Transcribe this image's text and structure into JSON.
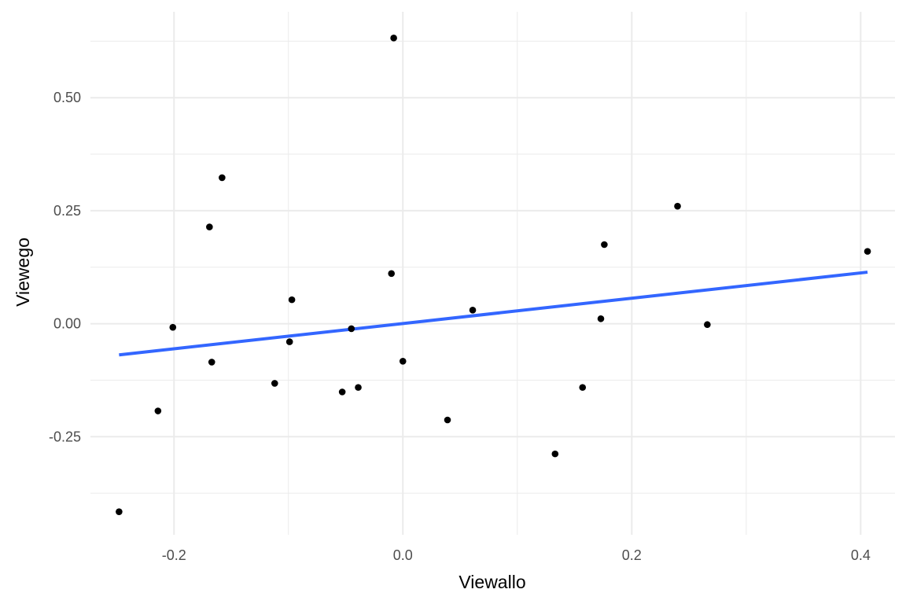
{
  "chart_data": {
    "type": "scatter",
    "title": "",
    "xlabel": "Viewallo",
    "ylabel": "Viewego",
    "xlim": [
      -0.273,
      0.43
    ],
    "ylim": [
      -0.467,
      0.69
    ],
    "x_ticks": [
      {
        "value": -0.2,
        "label": "-0.2"
      },
      {
        "value": 0.0,
        "label": "0.0"
      },
      {
        "value": 0.2,
        "label": "0.2"
      },
      {
        "value": 0.4,
        "label": "0.4"
      }
    ],
    "x_minor_ticks": [
      -0.1,
      0.1,
      0.3
    ],
    "y_ticks": [
      {
        "value": -0.25,
        "label": "-0.25"
      },
      {
        "value": 0.0,
        "label": "0.00"
      },
      {
        "value": 0.25,
        "label": "0.25"
      },
      {
        "value": 0.5,
        "label": "0.50"
      }
    ],
    "y_minor_ticks": [
      -0.375,
      -0.125,
      0.125,
      0.375,
      0.625
    ],
    "grid": true,
    "legend": "none",
    "colors": {
      "points": "#000000",
      "fit_line": "#3366ff",
      "grid": "#ebebeb",
      "tick_text": "#4d4d4d"
    },
    "points": [
      {
        "x": -0.248,
        "y": -0.416
      },
      {
        "x": -0.214,
        "y": -0.193
      },
      {
        "x": -0.201,
        "y": -0.008
      },
      {
        "x": -0.169,
        "y": 0.214
      },
      {
        "x": -0.167,
        "y": -0.085
      },
      {
        "x": -0.158,
        "y": 0.323
      },
      {
        "x": -0.112,
        "y": -0.132
      },
      {
        "x": -0.099,
        "y": -0.04
      },
      {
        "x": -0.097,
        "y": 0.053
      },
      {
        "x": -0.053,
        "y": -0.151
      },
      {
        "x": -0.045,
        "y": -0.011
      },
      {
        "x": -0.039,
        "y": -0.141
      },
      {
        "x": -0.01,
        "y": 0.111
      },
      {
        "x": -0.008,
        "y": 0.632
      },
      {
        "x": 0.0,
        "y": -0.083
      },
      {
        "x": 0.039,
        "y": -0.213
      },
      {
        "x": 0.061,
        "y": 0.03
      },
      {
        "x": 0.133,
        "y": -0.288
      },
      {
        "x": 0.157,
        "y": -0.141
      },
      {
        "x": 0.173,
        "y": 0.011
      },
      {
        "x": 0.176,
        "y": 0.175
      },
      {
        "x": 0.24,
        "y": 0.26
      },
      {
        "x": 0.266,
        "y": -0.002
      },
      {
        "x": 0.406,
        "y": 0.16
      }
    ],
    "fit_line": {
      "method": "linear",
      "x": [
        -0.248,
        0.406
      ],
      "y": [
        -0.069,
        0.114
      ]
    }
  }
}
